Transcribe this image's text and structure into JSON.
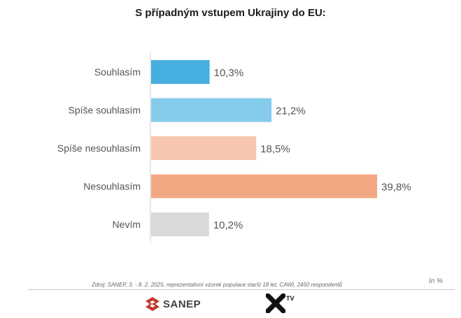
{
  "chart_data": {
    "type": "bar",
    "orientation": "horizontal",
    "title": "S případným vstupem Ukrajiny do EU:",
    "categories": [
      "Souhlasím",
      "Spíše souhlasím",
      "Spíše nesouhlasím",
      "Nesouhlasím",
      "Nevím"
    ],
    "values": [
      10.3,
      21.2,
      18.5,
      39.8,
      10.2
    ],
    "value_labels": [
      "10,3%",
      "21,2%",
      "18,5%",
      "39,8%",
      "10,2%"
    ],
    "colors": [
      "#45b0e0",
      "#85cbec",
      "#f6c7ae",
      "#f2a983",
      "#d9d9d9"
    ],
    "xlim": [
      0,
      40
    ],
    "grid": false,
    "unit_note": "In %"
  },
  "source": "Zdroj: SANEP, 3. - 8. 2. 2025, reprezentativní vzorek populace starší 18 let, CAWI, 2450 respondentů",
  "logos": {
    "sanep": {
      "text": "SANEP",
      "icon": "sanep-s-icon",
      "color": "#c0392b"
    },
    "xtv": {
      "text": "TV",
      "icon": "x-mark-icon"
    }
  }
}
